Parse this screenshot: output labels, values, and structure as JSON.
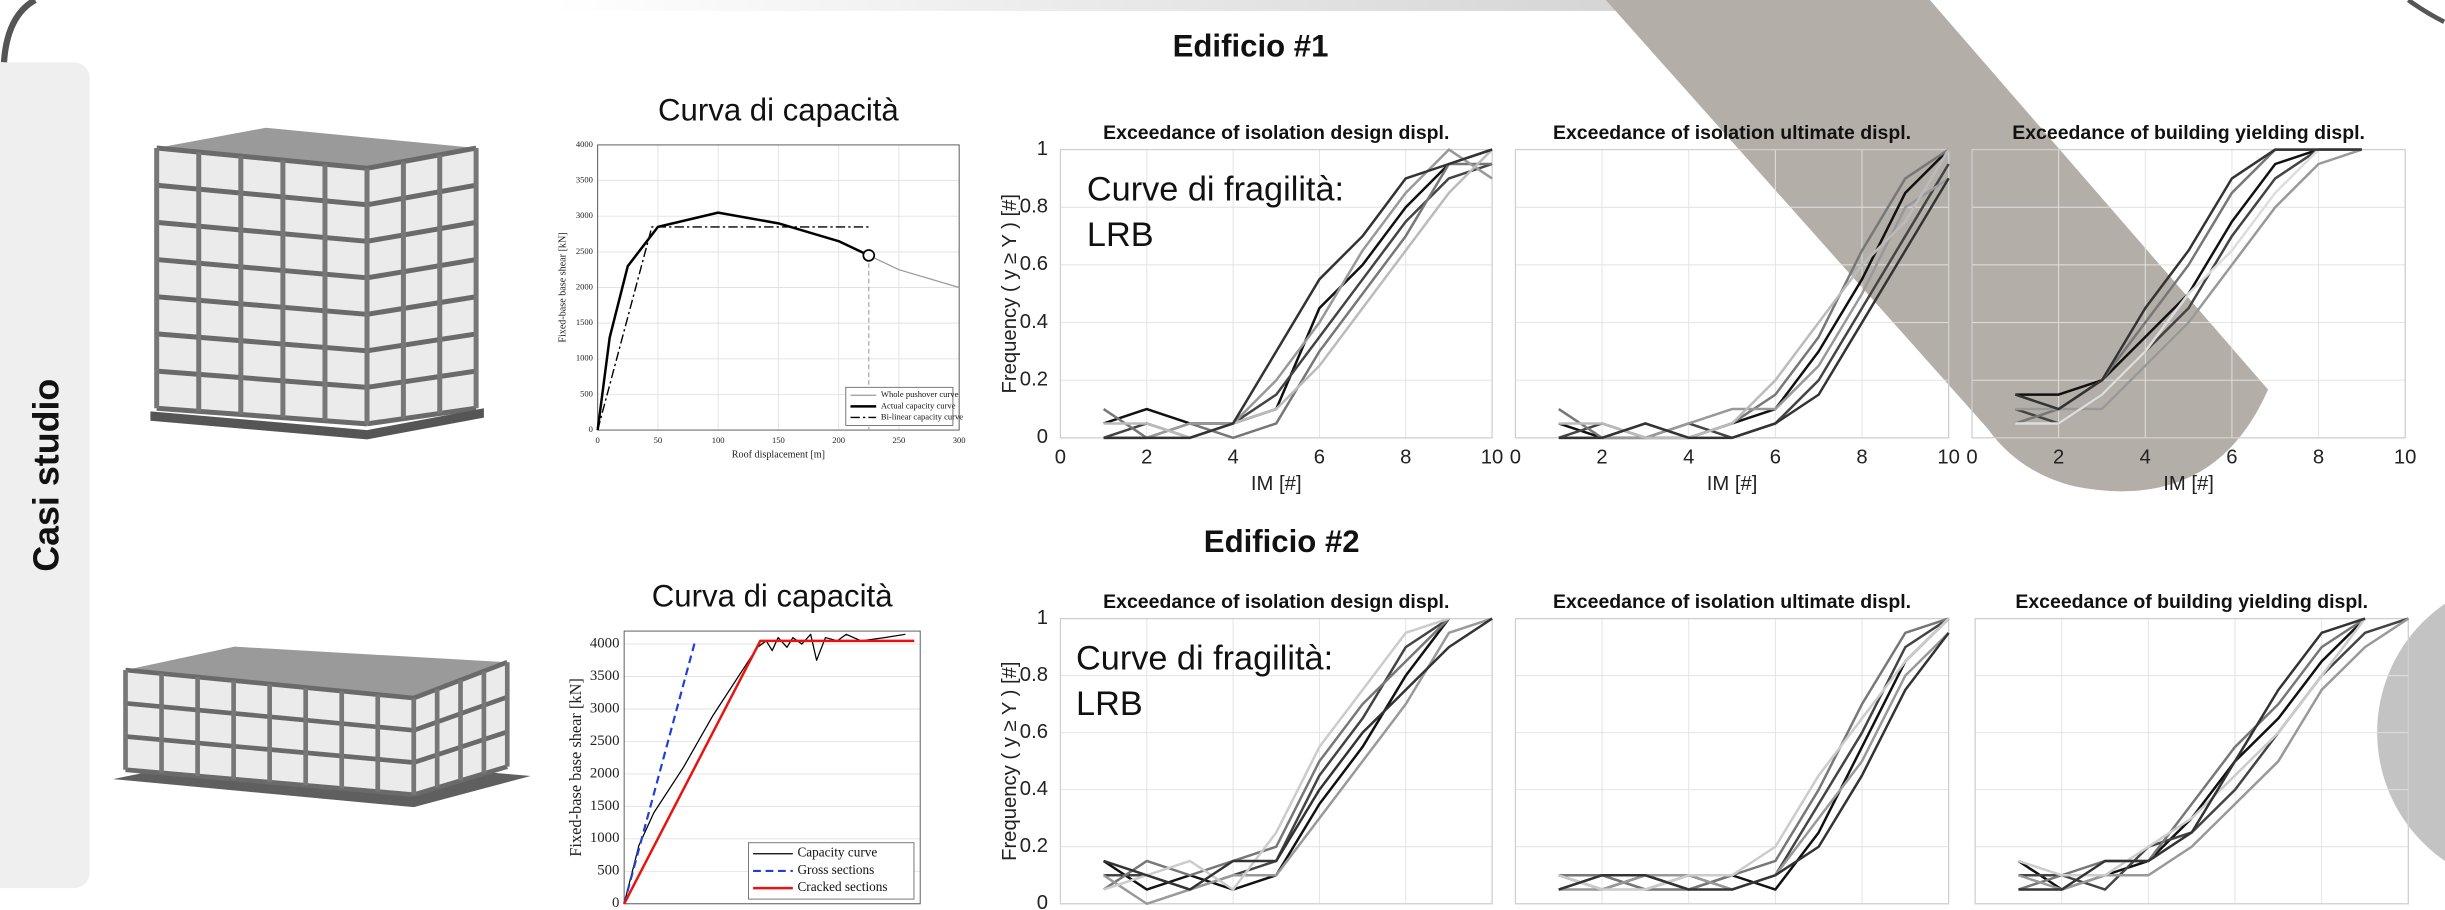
{
  "side_label": "Casi studio",
  "headings": [
    "Edificio #1",
    "Edificio #2"
  ],
  "chart_data": [
    {
      "type": "line",
      "title": "Curva di capacità",
      "xlabel": "Roof displacement [m]",
      "ylabel": "Fixed-base base shear [kN]",
      "xlim": [
        0,
        300
      ],
      "xticks": [
        0,
        50,
        100,
        150,
        200,
        250,
        300
      ],
      "ylim": [
        0,
        4000
      ],
      "yticks": [
        0,
        500,
        1000,
        1500,
        2000,
        2500,
        3000,
        3500,
        4000
      ],
      "grid": true,
      "legend": "lower right",
      "series": [
        {
          "name": "Whole pushover curve",
          "color": "#9a9a9a",
          "line_style": "solid",
          "width": 0.8,
          "x": [
            0,
            10,
            25,
            50,
            100,
            150,
            200,
            225,
            250,
            300
          ],
          "values": [
            0,
            1300,
            2300,
            2850,
            3050,
            2900,
            2650,
            2450,
            2250,
            2000
          ]
        },
        {
          "name": "Actual capacity curve",
          "color": "#000000",
          "line_style": "solid",
          "width": 1.6,
          "end_marker": "circle",
          "x": [
            0,
            10,
            25,
            50,
            100,
            150,
            200,
            225
          ],
          "values": [
            0,
            1300,
            2300,
            2850,
            3050,
            2900,
            2650,
            2450
          ]
        },
        {
          "name": "Bi-linear capacity curve",
          "color": "#000000",
          "line_style": "dash-dot",
          "width": 0.9,
          "x": [
            0,
            45,
            225
          ],
          "values": [
            0,
            2850,
            2850
          ]
        }
      ]
    },
    {
      "type": "line",
      "title": "Exceedance of isolation design displ.",
      "xlabel": "IM [#]",
      "ylabel": "Frequency ( y ≥ Y ) [#]",
      "annotation": [
        "Curve di fragilità:",
        "LRB"
      ],
      "xlim": [
        0,
        10
      ],
      "xticks": [
        0,
        2,
        4,
        6,
        8,
        10
      ],
      "ylim": [
        0,
        1
      ],
      "yticks": [
        0,
        0.2,
        0.4,
        0.6,
        0.8,
        1
      ],
      "grid": true,
      "show_xtick_labels": true,
      "show_ytick_labels": true,
      "x": [
        1,
        2,
        3,
        4,
        5,
        6,
        7,
        8,
        9,
        10
      ],
      "series": [
        {
          "color": "#111111",
          "values": [
            0.05,
            0.1,
            0.05,
            0.05,
            0.1,
            0.45,
            0.6,
            0.8,
            0.95,
            1
          ]
        },
        {
          "color": "#444444",
          "values": [
            0,
            0.05,
            0,
            0.05,
            0.15,
            0.35,
            0.55,
            0.75,
            0.9,
            0.95
          ]
        },
        {
          "color": "#777777",
          "values": [
            0.1,
            0,
            0.05,
            0,
            0.05,
            0.3,
            0.5,
            0.7,
            0.95,
            0.95
          ]
        },
        {
          "color": "#999999",
          "values": [
            0,
            0,
            0.05,
            0.05,
            0.2,
            0.4,
            0.65,
            0.85,
            1,
            0.9
          ]
        },
        {
          "color": "#bbbbbb",
          "values": [
            0.05,
            0.05,
            0,
            0.05,
            0.1,
            0.25,
            0.45,
            0.65,
            0.85,
            1
          ]
        },
        {
          "color": "#333333",
          "values": [
            0,
            0,
            0,
            0.05,
            0.3,
            0.55,
            0.7,
            0.9,
            0.95,
            1
          ]
        }
      ]
    },
    {
      "type": "line",
      "title": "Exceedance of isolation ultimate displ.",
      "xlabel": "IM [#]",
      "xlim": [
        0,
        10
      ],
      "xticks": [
        0,
        2,
        4,
        6,
        8,
        10
      ],
      "ylim": [
        0,
        1
      ],
      "yticks": [
        0,
        0.2,
        0.4,
        0.6,
        0.8,
        1
      ],
      "grid": true,
      "show_xtick_labels": true,
      "show_ytick_labels": false,
      "x": [
        1,
        2,
        3,
        4,
        5,
        6,
        7,
        8,
        9,
        10
      ],
      "series": [
        {
          "color": "#111111",
          "values": [
            0.05,
            0,
            0,
            0,
            0.05,
            0.1,
            0.3,
            0.55,
            0.85,
            1
          ]
        },
        {
          "color": "#444444",
          "values": [
            0,
            0.05,
            0,
            0.05,
            0,
            0.05,
            0.2,
            0.45,
            0.7,
            0.95
          ]
        },
        {
          "color": "#777777",
          "values": [
            0.1,
            0,
            0.05,
            0,
            0.05,
            0.15,
            0.35,
            0.65,
            0.9,
            1
          ]
        },
        {
          "color": "#999999",
          "values": [
            0,
            0,
            0,
            0.05,
            0.1,
            0.1,
            0.25,
            0.5,
            0.8,
            0.9
          ]
        },
        {
          "color": "#bbbbbb",
          "values": [
            0.05,
            0.05,
            0,
            0,
            0.05,
            0.2,
            0.4,
            0.6,
            0.75,
            1
          ]
        },
        {
          "color": "#333333",
          "values": [
            0,
            0,
            0.05,
            0,
            0,
            0.05,
            0.15,
            0.4,
            0.65,
            0.9
          ]
        }
      ]
    },
    {
      "type": "line",
      "title": "Exceedance of building yielding displ.",
      "xlabel": "IM [#]",
      "xlim": [
        0,
        10
      ],
      "xticks": [
        0,
        2,
        4,
        6,
        8,
        10
      ],
      "ylim": [
        0,
        1
      ],
      "yticks": [
        0,
        0.2,
        0.4,
        0.6,
        0.8,
        1
      ],
      "grid": true,
      "show_xtick_labels": true,
      "show_ytick_labels": false,
      "x": [
        1,
        2,
        3,
        4,
        5,
        6,
        7,
        8,
        9,
        10
      ],
      "series": [
        {
          "color": "#111111",
          "values": [
            0.15,
            0.15,
            0.2,
            0.35,
            0.5,
            0.75,
            0.95,
            1,
            1,
            null
          ]
        },
        {
          "color": "#444444",
          "values": [
            0.1,
            0.05,
            0.15,
            0.3,
            0.45,
            0.7,
            0.9,
            1,
            1,
            null
          ]
        },
        {
          "color": "#777777",
          "values": [
            0.05,
            0.1,
            0.2,
            0.4,
            0.6,
            0.85,
            1,
            1,
            1,
            null
          ]
        },
        {
          "color": "#999999",
          "values": [
            0.1,
            0.1,
            0.1,
            0.25,
            0.4,
            0.6,
            0.8,
            0.95,
            1,
            null
          ]
        },
        {
          "color": "#dddddd",
          "values": [
            0.05,
            0.05,
            0.15,
            0.3,
            0.5,
            0.65,
            0.85,
            1,
            1,
            null
          ]
        },
        {
          "color": "#333333",
          "values": [
            0.15,
            0.1,
            0.2,
            0.45,
            0.65,
            0.9,
            1,
            1,
            1,
            null
          ]
        }
      ]
    },
    {
      "type": "line",
      "title": "Curva di capacità",
      "ylabel": "Fixed-base base shear [kN]",
      "xlim": [
        0,
        100
      ],
      "ylim": [
        0,
        4200
      ],
      "yticks": [
        0,
        500,
        1000,
        1500,
        2000,
        2500,
        3000,
        3500,
        4000
      ],
      "grid": true,
      "legend": "lower right",
      "series": [
        {
          "name": "Capacity curve",
          "color": "#000000",
          "line_style": "solid",
          "width": 0.8,
          "x": [
            0,
            5,
            10,
            20,
            30,
            40,
            45,
            48,
            50,
            52,
            55,
            57,
            60,
            63,
            65,
            68,
            72,
            75,
            80,
            88,
            95
          ],
          "values": [
            0,
            900,
            1400,
            2100,
            2900,
            3600,
            3950,
            4050,
            3900,
            4100,
            3950,
            4100,
            4000,
            4150,
            3750,
            4100,
            4050,
            4150,
            4050,
            4100,
            4150
          ]
        },
        {
          "name": "Gross sections",
          "color": "#1f3fd6",
          "line_style": "dashed",
          "width": 1.4,
          "x": [
            0,
            24
          ],
          "values": [
            0,
            4050
          ]
        },
        {
          "name": "Cracked sections",
          "color": "#e8140f",
          "line_style": "solid",
          "width": 1.6,
          "x": [
            0,
            46,
            98
          ],
          "values": [
            0,
            4050,
            4050
          ]
        }
      ]
    },
    {
      "type": "line",
      "title": "Exceedance of isolation design displ.",
      "ylabel": "Frequency ( y ≥ Y ) [#]",
      "annotation": [
        "Curve di fragilità:",
        "LRB"
      ],
      "xlim": [
        0,
        10
      ],
      "xticks": [
        0,
        2,
        4,
        6,
        8,
        10
      ],
      "ylim": [
        0,
        1
      ],
      "yticks": [
        0,
        0.2,
        0.4,
        0.6,
        0.8,
        1
      ],
      "grid": true,
      "show_xtick_labels": false,
      "show_ytick_labels": true,
      "x": [
        1,
        2,
        3,
        4,
        5,
        6,
        7,
        8,
        9,
        10
      ],
      "series": [
        {
          "color": "#111111",
          "values": [
            0.15,
            0.05,
            0.1,
            0.05,
            0.1,
            0.35,
            0.55,
            0.8,
            1,
            null
          ]
        },
        {
          "color": "#444444",
          "values": [
            0.1,
            0.1,
            0.05,
            0.1,
            0.15,
            0.45,
            0.65,
            0.9,
            1,
            null
          ]
        },
        {
          "color": "#777777",
          "values": [
            0.05,
            0.15,
            0.1,
            0.15,
            0.2,
            0.5,
            0.7,
            0.85,
            1,
            null
          ]
        },
        {
          "color": "#999999",
          "values": [
            0.1,
            0,
            0.05,
            0.1,
            0.1,
            0.3,
            0.5,
            0.7,
            0.95,
            1
          ]
        },
        {
          "color": "#cccccc",
          "values": [
            0.05,
            0.1,
            0.15,
            0.05,
            0.25,
            0.55,
            0.75,
            0.95,
            1,
            null
          ]
        },
        {
          "color": "#333333",
          "values": [
            0.15,
            0.1,
            0.05,
            0.15,
            0.15,
            0.4,
            0.6,
            0.75,
            0.9,
            1
          ]
        }
      ]
    },
    {
      "type": "line",
      "title": "Exceedance of isolation ultimate displ.",
      "xlim": [
        0,
        10
      ],
      "xticks": [
        0,
        2,
        4,
        6,
        8,
        10
      ],
      "ylim": [
        0,
        1
      ],
      "yticks": [
        0,
        0.2,
        0.4,
        0.6,
        0.8,
        1
      ],
      "grid": true,
      "show_xtick_labels": false,
      "show_ytick_labels": false,
      "x": [
        1,
        2,
        3,
        4,
        5,
        6,
        7,
        8,
        9,
        10
      ],
      "series": [
        {
          "color": "#111111",
          "values": [
            0.1,
            0.05,
            0.1,
            0.05,
            0.1,
            0.05,
            0.25,
            0.55,
            0.85,
            1
          ]
        },
        {
          "color": "#444444",
          "values": [
            0.05,
            0.1,
            0.05,
            0.1,
            0.05,
            0.1,
            0.35,
            0.6,
            0.9,
            1
          ]
        },
        {
          "color": "#777777",
          "values": [
            0.1,
            0.1,
            0.05,
            0.05,
            0.1,
            0.15,
            0.4,
            0.7,
            0.95,
            1
          ]
        },
        {
          "color": "#999999",
          "values": [
            0.05,
            0.05,
            0.1,
            0.1,
            0.05,
            0.1,
            0.3,
            0.5,
            0.8,
            0.95
          ]
        },
        {
          "color": "#cccccc",
          "values": [
            0.1,
            0.05,
            0.05,
            0.1,
            0.1,
            0.2,
            0.45,
            0.65,
            0.85,
            1
          ]
        },
        {
          "color": "#333333",
          "values": [
            0.05,
            0.1,
            0.1,
            0.05,
            0.05,
            0.1,
            0.2,
            0.45,
            0.75,
            0.95
          ]
        }
      ]
    },
    {
      "type": "line",
      "title": "Exceedance of building yielding displ.",
      "xlim": [
        0,
        10
      ],
      "xticks": [
        0,
        2,
        4,
        6,
        8,
        10
      ],
      "ylim": [
        0,
        1
      ],
      "yticks": [
        0,
        0.2,
        0.4,
        0.6,
        0.8,
        1
      ],
      "grid": true,
      "show_xtick_labels": false,
      "show_ytick_labels": false,
      "x": [
        1,
        2,
        3,
        4,
        5,
        6,
        7,
        8,
        9,
        10
      ],
      "series": [
        {
          "color": "#111111",
          "values": [
            0.15,
            0.05,
            0.1,
            0.15,
            0.3,
            0.5,
            0.65,
            0.85,
            1,
            null
          ]
        },
        {
          "color": "#444444",
          "values": [
            0.1,
            0.1,
            0.05,
            0.2,
            0.25,
            0.4,
            0.6,
            0.8,
            0.95,
            1
          ]
        },
        {
          "color": "#777777",
          "values": [
            0.05,
            0.1,
            0.15,
            0.15,
            0.35,
            0.55,
            0.7,
            0.9,
            1,
            null
          ]
        },
        {
          "color": "#999999",
          "values": [
            0.1,
            0.05,
            0.1,
            0.1,
            0.2,
            0.35,
            0.5,
            0.75,
            0.9,
            1
          ]
        },
        {
          "color": "#cccccc",
          "values": [
            0.15,
            0.1,
            0.1,
            0.2,
            0.3,
            0.45,
            0.6,
            0.8,
            1,
            null
          ]
        },
        {
          "color": "#333333",
          "values": [
            0.05,
            0.05,
            0.15,
            0.15,
            0.25,
            0.5,
            0.75,
            0.95,
            1,
            null
          ]
        }
      ]
    }
  ]
}
